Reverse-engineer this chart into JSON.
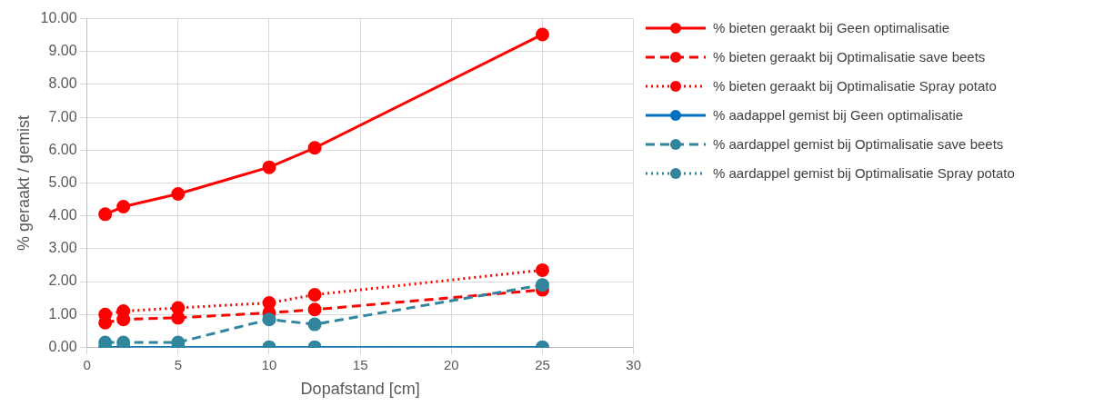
{
  "chart_data": {
    "type": "line",
    "xlabel": "Dopafstand [cm]",
    "ylabel": "% geraakt / gemist",
    "x": [
      1,
      2,
      5,
      10,
      12.5,
      25
    ],
    "series": [
      {
        "name": "% bieten geraakt bij Geen optimalisatie",
        "color": "#ff0000",
        "line_style": "solid",
        "values": [
          4.05,
          4.28,
          4.67,
          5.48,
          6.07,
          9.52
        ]
      },
      {
        "name": "% bieten geraakt bij Optimalisatie save beets",
        "color": "#ff0000",
        "line_style": "dashed",
        "values": [
          0.75,
          0.85,
          0.9,
          1.05,
          1.15,
          1.75
        ]
      },
      {
        "name": "% bieten geraakt bij Optimalisatie Spray potato",
        "color": "#ff0000",
        "line_style": "dotted",
        "values": [
          1.0,
          1.1,
          1.2,
          1.35,
          1.6,
          2.35
        ]
      },
      {
        "name": "% aadappel gemist bij Geen optimalisatie",
        "color": "#0070c0",
        "line_style": "solid",
        "values": [
          0,
          0,
          0,
          0,
          0,
          0
        ]
      },
      {
        "name": "% aardappel gemist bij Optimalisatie save beets",
        "color": "#31859c",
        "line_style": "dashed",
        "values": [
          0.15,
          0.15,
          0.15,
          0.85,
          0.7,
          1.9
        ]
      },
      {
        "name": "% aardappel gemist bij Optimalisatie Spray potato",
        "color": "#31859c",
        "line_style": "dotted",
        "values": [
          0,
          0,
          0,
          0,
          0,
          0
        ]
      }
    ],
    "xlim": [
      0,
      30
    ],
    "xticks": [
      0,
      5,
      10,
      15,
      20,
      25,
      30
    ],
    "ylim": [
      0,
      10
    ],
    "yticks": [
      {
        "value": 0,
        "label": "0.00"
      },
      {
        "value": 1,
        "label": "1.00"
      },
      {
        "value": 2,
        "label": "2.00"
      },
      {
        "value": 3,
        "label": "3.00"
      },
      {
        "value": 4,
        "label": "4.00"
      },
      {
        "value": 5,
        "label": "5.00"
      },
      {
        "value": 6,
        "label": "6.00"
      },
      {
        "value": 7,
        "label": "7.00"
      },
      {
        "value": 8,
        "label": "8.00"
      },
      {
        "value": 9,
        "label": "9.00"
      },
      {
        "value": 10,
        "label": "10.00"
      }
    ],
    "grid": true,
    "legend": "right",
    "marker": "circle"
  }
}
